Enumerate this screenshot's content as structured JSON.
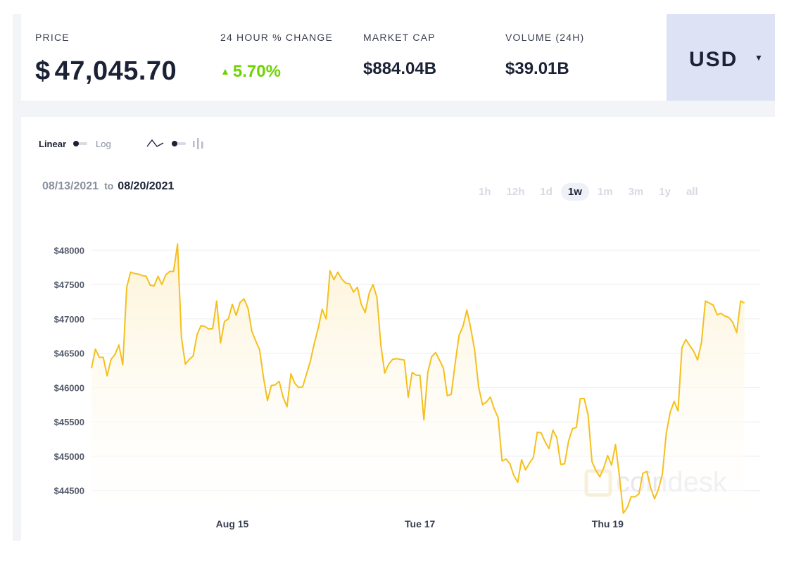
{
  "stats": {
    "price_label": "PRICE",
    "price_currency": "$",
    "price_value": "47,045.70",
    "change_label": "24 HOUR % CHANGE",
    "change_value": "5.70%",
    "change_direction": "up",
    "market_cap_label": "MARKET CAP",
    "market_cap_value": "$884.04B",
    "volume_label": "VOLUME (24H)",
    "volume_value": "$39.01B"
  },
  "currency": {
    "selected": "USD"
  },
  "controls": {
    "scale_linear": "Linear",
    "scale_log": "Log",
    "chart_style_line_icon": "line-chart-icon",
    "chart_style_bar_icon": "candlestick-icon"
  },
  "range": {
    "from": "08/13/2021",
    "to_word": "to",
    "to": "08/20/2021"
  },
  "periods": [
    "1h",
    "12h",
    "1d",
    "1w",
    "1m",
    "3m",
    "1y",
    "all"
  ],
  "active_period": "1w",
  "colors": {
    "accent_up": "#6dd400",
    "line": "#f5c01d",
    "fill": "#fdf3d6",
    "currency_bg": "#dde3f4"
  },
  "watermark": "coindesk",
  "chart_data": {
    "type": "area",
    "y_ticks": [
      "$48000",
      "$47500",
      "$47000",
      "$46500",
      "$46000",
      "$45500",
      "$45000",
      "$44500"
    ],
    "y_tick_values": [
      48000,
      47500,
      47000,
      46500,
      46000,
      45500,
      45000,
      44500
    ],
    "x_ticks": [
      "Aug 15",
      "Tue 17",
      "Thu 19"
    ],
    "x_tick_positions": [
      36,
      84,
      132
    ],
    "x_range": [
      0,
      171
    ],
    "ylim": [
      44200,
      48300
    ],
    "grid": true,
    "values": [
      46280,
      46560,
      46440,
      46440,
      46170,
      46410,
      46480,
      46620,
      46330,
      47460,
      47680,
      47660,
      47650,
      47630,
      47620,
      47490,
      47480,
      47620,
      47500,
      47640,
      47690,
      47690,
      48090,
      46730,
      46340,
      46410,
      46460,
      46770,
      46900,
      46890,
      46850,
      46860,
      47260,
      46650,
      46960,
      47000,
      47210,
      47050,
      47240,
      47290,
      47160,
      46820,
      46680,
      46550,
      46140,
      45810,
      46030,
      46040,
      46090,
      45860,
      45720,
      46200,
      46060,
      46000,
      46010,
      46200,
      46390,
      46650,
      46870,
      47140,
      47000,
      47700,
      47570,
      47680,
      47580,
      47520,
      47510,
      47390,
      47460,
      47210,
      47090,
      47370,
      47500,
      47310,
      46620,
      46210,
      46340,
      46410,
      46420,
      46410,
      46400,
      45860,
      46220,
      46180,
      46180,
      45530,
      46220,
      46450,
      46510,
      46400,
      46280,
      45880,
      45900,
      46350,
      46760,
      46890,
      47130,
      46860,
      46540,
      46010,
      45750,
      45790,
      45860,
      45690,
      45560,
      44930,
      44960,
      44890,
      44720,
      44620,
      44950,
      44800,
      44900,
      44980,
      45350,
      45340,
      45210,
      45110,
      45380,
      45270,
      44880,
      44890,
      45220,
      45400,
      45420,
      45840,
      45840,
      45600,
      44920,
      44790,
      44700,
      44830,
      45010,
      44870,
      45170,
      44720,
      44170,
      44250,
      44410,
      44410,
      44450,
      44750,
      44780,
      44540,
      44380,
      44520,
      44740,
      45340,
      45640,
      45800,
      45660,
      46580,
      46700,
      46610,
      46530,
      46400,
      46660,
      47260,
      47230,
      47200,
      47060,
      47080,
      47040,
      47020,
      46950,
      46800,
      47260,
      47230
    ]
  }
}
